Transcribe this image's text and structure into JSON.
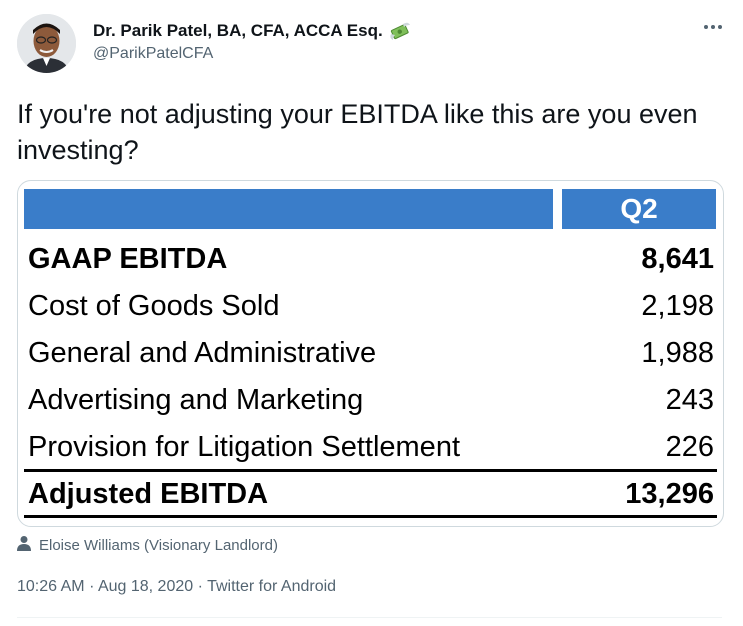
{
  "author": {
    "display_name": "Dr. Parik Patel, BA, CFA, ACCA Esq.",
    "handle": "@ParikPatelCFA",
    "badge_icon": "money-with-wings-icon"
  },
  "menu_icon": "more-icon",
  "tweet": {
    "text": "If you're not adjusting your EBITDA like this are you even investing?"
  },
  "table": {
    "column_header": "Q2",
    "header_color": "#3a7dc9",
    "rows": [
      {
        "label": "GAAP EBITDA",
        "value": "8,641",
        "bold": true
      },
      {
        "label": "Cost of Goods Sold",
        "value": "2,198",
        "bold": false
      },
      {
        "label": "General and Administrative",
        "value": "1,988",
        "bold": false
      },
      {
        "label": "Advertising and Marketing",
        "value": "243",
        "bold": false
      },
      {
        "label": "Provision for Litigation Settlement",
        "value": "226",
        "bold": false
      }
    ],
    "total": {
      "label": "Adjusted EBITDA",
      "value": "13,296"
    }
  },
  "tagged_user": {
    "icon": "person-icon",
    "name": "Eloise Williams (Visionary Landlord)"
  },
  "meta": {
    "time": "10:26 AM",
    "separator": "·",
    "date": "Aug 18, 2020",
    "source": "Twitter for Android"
  }
}
